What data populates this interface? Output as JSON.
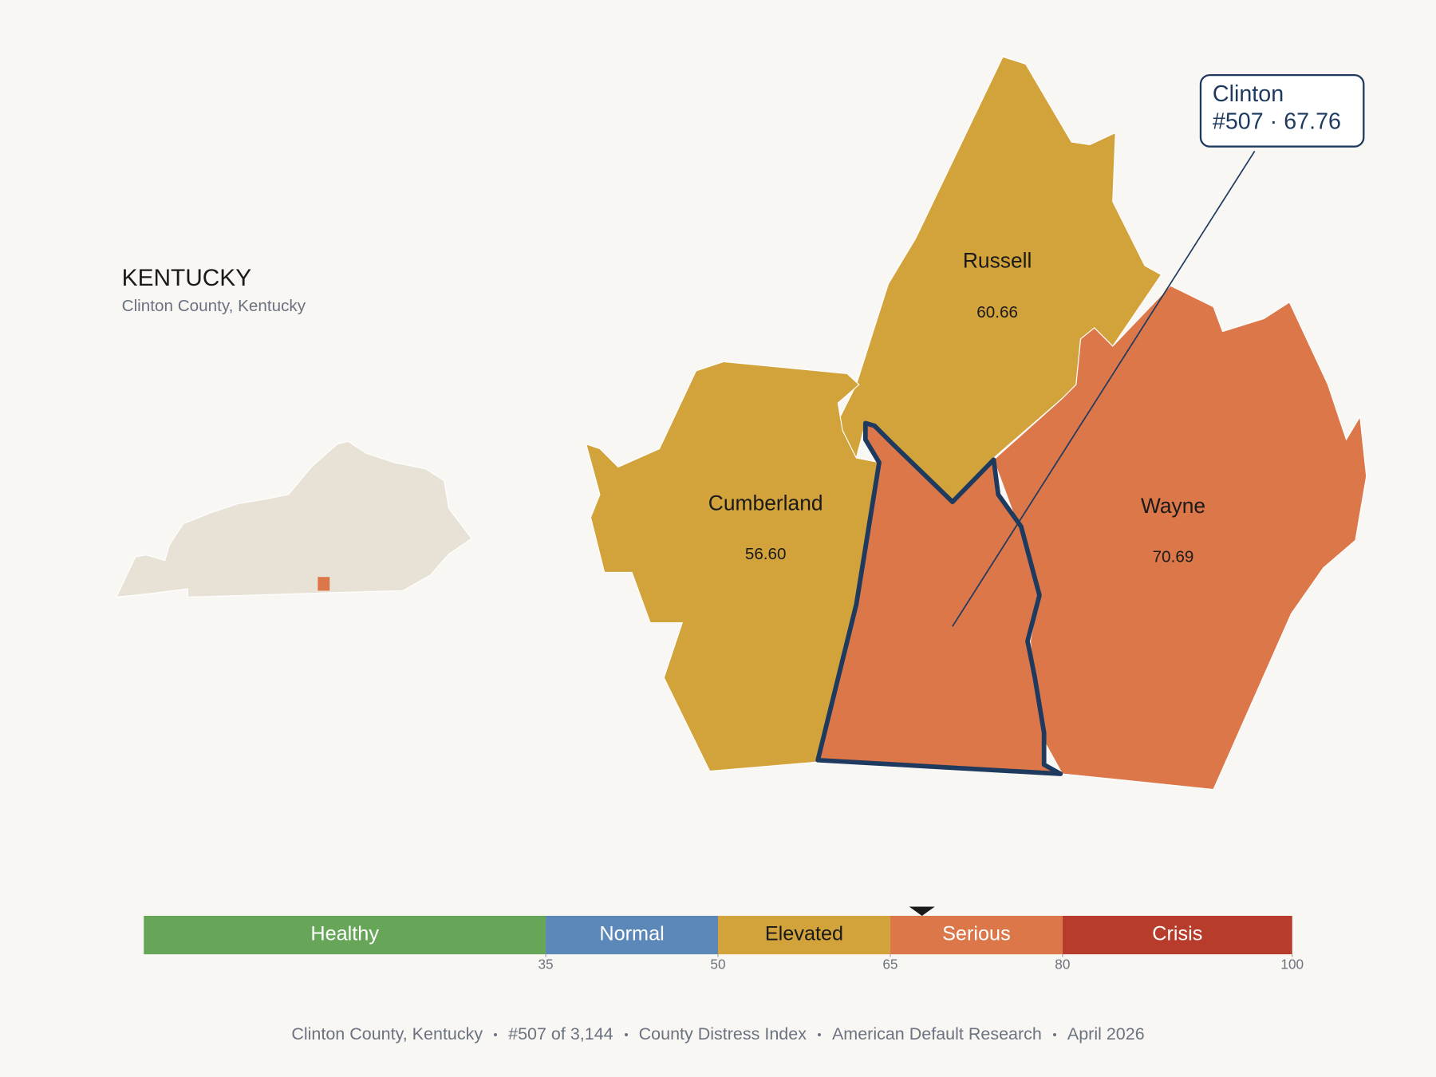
{
  "state": {
    "title": "KENTUCKY",
    "subtitle": "Clinton County, Kentucky"
  },
  "counties": [
    {
      "name": "Russell",
      "value": 60.66,
      "value_label": "60.66"
    },
    {
      "name": "Cumberland",
      "value": 56.6,
      "value_label": "56.60"
    },
    {
      "name": "Wayne",
      "value": 70.69,
      "value_label": "70.69"
    }
  ],
  "callout": {
    "name": "Clinton",
    "value": 67.76,
    "value_label": "#507 · 67.76"
  },
  "scale": {
    "range": [
      0,
      100
    ],
    "ticks": [
      35,
      50,
      65,
      80,
      100
    ],
    "bands": [
      {
        "name": "Healthy",
        "color": "#67a659",
        "text_color": "#ffffff"
      },
      {
        "name": "Normal",
        "color": "#5b88b8",
        "text_color": "#ffffff"
      },
      {
        "name": "Elevated",
        "color": "#d3a33b",
        "text_color": "#1a1a1a"
      },
      {
        "name": "Serious",
        "color": "#dc774a",
        "text_color": "#ffffff"
      },
      {
        "name": "Crisis",
        "color": "#b83c2b",
        "text_color": "#ffffff"
      }
    ]
  },
  "footer": [
    "Clinton County, Kentucky",
    "#507 of 3,144",
    "County Distress Index",
    "American Default Research",
    "April 2026"
  ]
}
